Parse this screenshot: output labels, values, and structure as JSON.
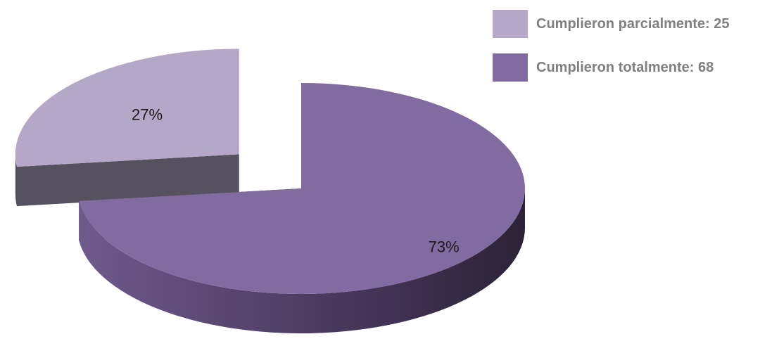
{
  "chart_data": {
    "type": "pie",
    "title": "",
    "slices": [
      {
        "label": "Cumplieron parcialmente: 25",
        "value": 25,
        "percent_label": "27%",
        "color": "#b4a7c8",
        "side_color": "#56515e",
        "exploded": true
      },
      {
        "label": "Cumplieron totalmente: 68",
        "value": 68,
        "percent_label": "73%",
        "color": "#826ba0",
        "side_color": "#4f3f66",
        "exploded": false
      }
    ],
    "legend_position": "top-right",
    "three_d": true
  }
}
